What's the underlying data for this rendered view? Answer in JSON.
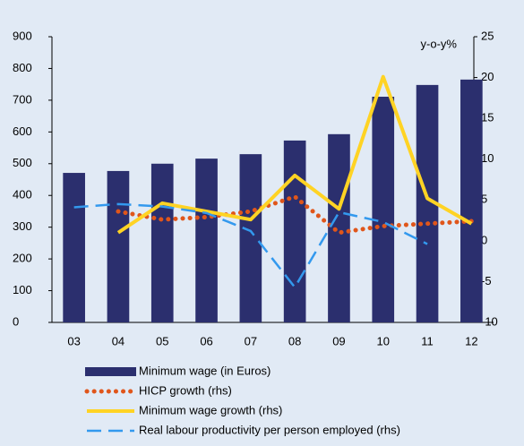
{
  "chart_data": {
    "type": "combo",
    "annotation": "y-o-y%",
    "categories": [
      "03",
      "04",
      "05",
      "06",
      "07",
      "08",
      "09",
      "10",
      "11",
      "12"
    ],
    "ylim": [
      0,
      900
    ],
    "yticks": [
      0,
      100,
      200,
      300,
      400,
      500,
      600,
      700,
      800,
      900
    ],
    "y2lim": [
      -10,
      25
    ],
    "y2ticks": [
      -10,
      -5,
      0,
      5,
      10,
      15,
      20,
      25
    ],
    "series": [
      {
        "name": "Minimum wage (in Euros)",
        "type": "bar",
        "color": "#2b2f6e",
        "values": [
          471,
          477,
          500,
          516,
          530,
          573,
          593,
          711,
          748,
          765
        ]
      },
      {
        "name": "HICP growth (rhs)",
        "type": "line",
        "axis": "y2",
        "color": "#e0561b",
        "line_style": "dotted",
        "values": [
          null,
          3.6,
          2.6,
          2.9,
          3.6,
          5.4,
          1.0,
          1.8,
          2.1,
          2.4
        ]
      },
      {
        "name": "Minimum wage growth (rhs)",
        "type": "line",
        "axis": "y2",
        "color": "#ffd324",
        "line_style": "solid",
        "values": [
          null,
          1.0,
          4.6,
          3.6,
          2.6,
          8.0,
          3.9,
          20.1,
          5.2,
          2.1
        ]
      },
      {
        "name": "Real labour productivity per person employed (rhs)",
        "type": "line",
        "axis": "y2",
        "color": "#3399ee",
        "line_style": "dashed",
        "values": [
          4.1,
          4.5,
          4.2,
          3.4,
          1.2,
          -5.7,
          3.5,
          2.3,
          -0.4,
          null
        ]
      }
    ]
  }
}
